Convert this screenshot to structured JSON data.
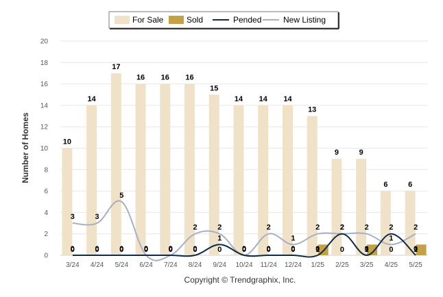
{
  "chart_data": {
    "type": "bar",
    "categories": [
      "3/24",
      "4/24",
      "5/24",
      "6/24",
      "7/24",
      "8/24",
      "9/24",
      "10/24",
      "11/24",
      "12/24",
      "1/25",
      "2/25",
      "3/25",
      "4/25",
      "5/25"
    ],
    "series": [
      {
        "name": "For Sale",
        "kind": "bar",
        "color": "#f0e2c8",
        "values": [
          10,
          14,
          17,
          16,
          16,
          16,
          15,
          14,
          14,
          14,
          13,
          9,
          9,
          6,
          6
        ]
      },
      {
        "name": "Sold",
        "kind": "bar",
        "color": "#c4a047",
        "values": [
          0,
          0,
          0,
          0,
          0,
          0,
          0,
          0,
          0,
          0,
          1,
          0,
          1,
          0,
          1
        ]
      },
      {
        "name": "Pended",
        "kind": "line",
        "color": "#0d2a45",
        "values": [
          0,
          0,
          0,
          0,
          0,
          0,
          1,
          0,
          0,
          0,
          0,
          2,
          0,
          2,
          0
        ]
      },
      {
        "name": "New Listing",
        "kind": "line",
        "color": "#a7afc2",
        "values": [
          3,
          3,
          5,
          0,
          0,
          2,
          2,
          0,
          2,
          1,
          2,
          2,
          2,
          1,
          2
        ]
      }
    ],
    "ylabel": "Number of Homes",
    "ylim": [
      0,
      20
    ],
    "yticks": [
      0,
      2,
      4,
      6,
      8,
      10,
      12,
      14,
      16,
      18,
      20
    ],
    "grid": true,
    "legend": "top",
    "footer": "Copyright © Trendgraphix, Inc."
  }
}
